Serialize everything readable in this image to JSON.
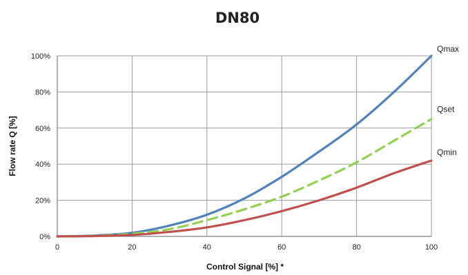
{
  "chart_data": {
    "type": "line",
    "title": "DN80",
    "xlabel": "Control Signal [%] *",
    "ylabel": "Flow rate Q [%]",
    "xlim": [
      0,
      100
    ],
    "ylim": [
      0,
      100
    ],
    "x_ticks": [
      "0",
      "20",
      "40",
      "60",
      "80",
      "100"
    ],
    "y_ticks": [
      "0%",
      "20%",
      "40%",
      "60%",
      "80%",
      "100%"
    ],
    "grid": true,
    "legend": "inline-right",
    "series": [
      {
        "name": "Qmax",
        "color": "#4f81bd",
        "style": "solid",
        "x": [
          0,
          10,
          20,
          30,
          40,
          50,
          60,
          70,
          80,
          90,
          100
        ],
        "y": [
          0,
          0.5,
          2,
          6,
          12,
          21,
          33,
          47,
          62,
          80,
          100
        ]
      },
      {
        "name": "Qset",
        "color": "#92d050",
        "style": "dashed",
        "x": [
          0,
          10,
          20,
          30,
          40,
          50,
          60,
          70,
          80,
          90,
          100
        ],
        "y": [
          0,
          0.3,
          1.5,
          4,
          9,
          15,
          22,
          31,
          41,
          53,
          65
        ]
      },
      {
        "name": "Qmin",
        "color": "#c0504d",
        "style": "solid",
        "x": [
          0,
          10,
          20,
          30,
          40,
          50,
          60,
          70,
          80,
          90,
          100
        ],
        "y": [
          0,
          0.2,
          0.8,
          2.5,
          5,
          9,
          14,
          20,
          27,
          35,
          42
        ]
      }
    ]
  }
}
